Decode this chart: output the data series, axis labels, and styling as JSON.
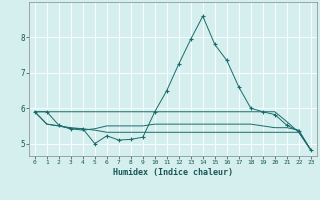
{
  "title": "",
  "xlabel": "Humidex (Indice chaleur)",
  "ylabel": "",
  "background_color": "#d5efee",
  "grid_color": "#ffffff",
  "line_color": "#1a6b6b",
  "xlim": [
    -0.5,
    23.5
  ],
  "ylim": [
    4.65,
    9.0
  ],
  "xticks": [
    0,
    1,
    2,
    3,
    4,
    5,
    6,
    7,
    8,
    9,
    10,
    11,
    12,
    13,
    14,
    15,
    16,
    17,
    18,
    19,
    20,
    21,
    22,
    23
  ],
  "yticks": [
    5,
    6,
    7,
    8
  ],
  "series1_x": [
    0,
    1,
    2,
    3,
    4,
    5,
    6,
    7,
    8,
    9,
    10,
    11,
    12,
    13,
    14,
    15,
    16,
    17,
    18,
    19,
    20,
    21,
    22,
    23
  ],
  "series1_y": [
    5.9,
    5.9,
    5.52,
    5.42,
    5.42,
    5.0,
    5.22,
    5.1,
    5.12,
    5.18,
    5.9,
    6.5,
    7.25,
    7.95,
    8.6,
    7.8,
    7.35,
    6.6,
    6.0,
    5.9,
    5.82,
    5.52,
    5.35,
    4.82
  ],
  "series2_x": [
    0,
    1,
    2,
    3,
    4,
    5,
    6,
    7,
    8,
    9,
    10,
    11,
    12,
    13,
    14,
    15,
    16,
    17,
    18,
    19,
    20,
    21,
    22,
    23
  ],
  "series2_y": [
    5.9,
    5.55,
    5.5,
    5.42,
    5.38,
    5.42,
    5.5,
    5.5,
    5.5,
    5.5,
    5.55,
    5.55,
    5.55,
    5.55,
    5.55,
    5.55,
    5.55,
    5.55,
    5.55,
    5.5,
    5.45,
    5.45,
    5.38,
    4.82
  ],
  "series3_x": [
    0,
    1,
    2,
    3,
    4,
    5,
    6,
    7,
    8,
    9,
    10,
    11,
    12,
    13,
    14,
    15,
    16,
    17,
    18,
    19,
    20,
    21,
    22,
    23
  ],
  "series3_y": [
    5.9,
    5.9,
    5.9,
    5.9,
    5.9,
    5.9,
    5.9,
    5.9,
    5.9,
    5.9,
    5.9,
    5.9,
    5.9,
    5.9,
    5.9,
    5.9,
    5.9,
    5.9,
    5.9,
    5.9,
    5.9,
    5.62,
    5.32,
    4.82
  ],
  "series4_x": [
    0,
    1,
    2,
    3,
    4,
    5,
    6,
    7,
    8,
    9,
    10,
    11,
    12,
    13,
    14,
    15,
    16,
    17,
    18,
    19,
    20,
    21,
    22,
    23
  ],
  "series4_y": [
    5.9,
    5.55,
    5.5,
    5.45,
    5.42,
    5.38,
    5.32,
    5.32,
    5.32,
    5.32,
    5.32,
    5.32,
    5.32,
    5.32,
    5.32,
    5.32,
    5.32,
    5.32,
    5.32,
    5.32,
    5.32,
    5.32,
    5.32,
    4.82
  ]
}
